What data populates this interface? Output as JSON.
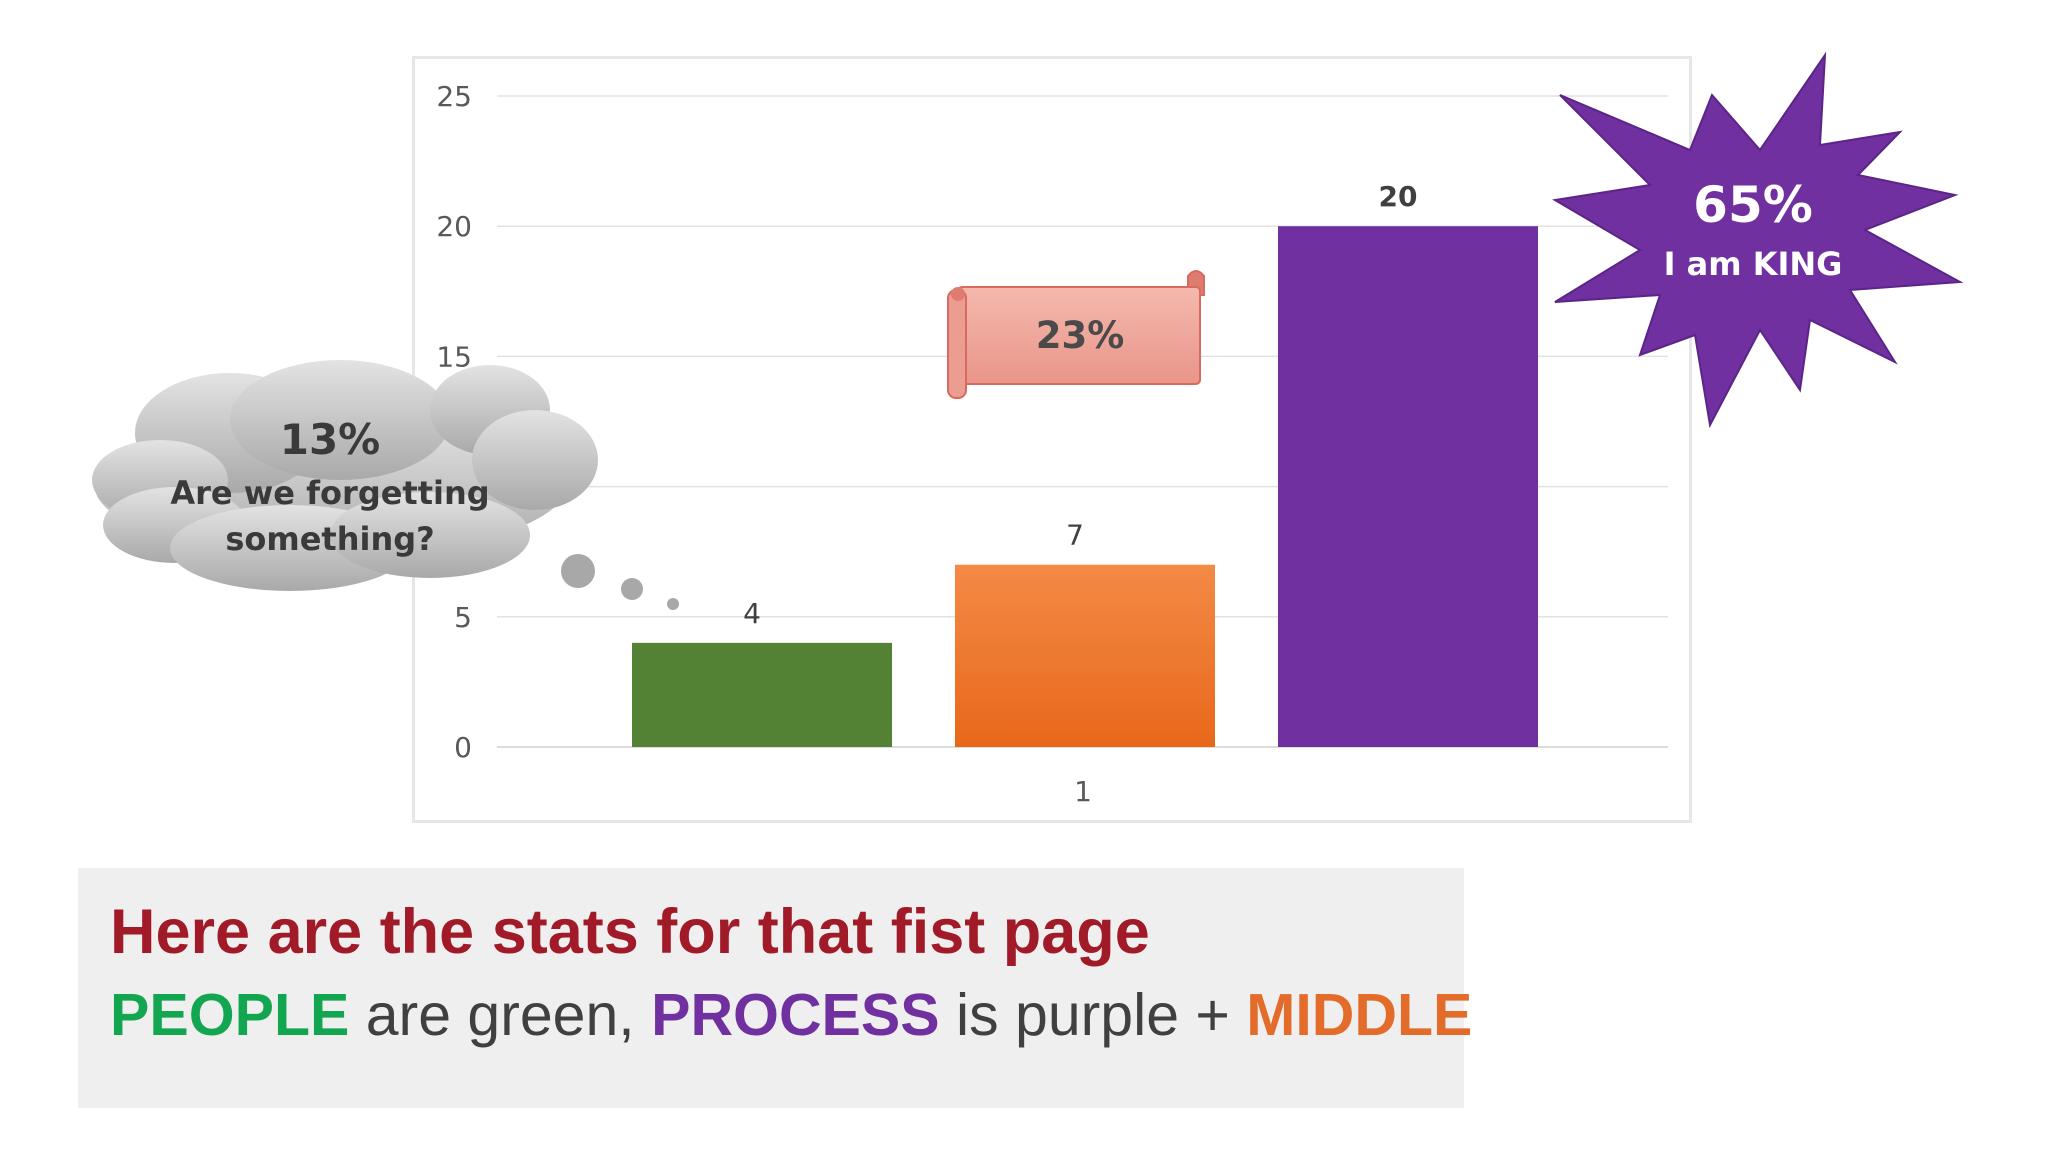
{
  "chart_data": {
    "type": "bar",
    "categories": [
      "1"
    ],
    "series": [
      {
        "values": [
          4
        ],
        "color": "#548235"
      },
      {
        "values": [
          7
        ],
        "color": "#f07a2c"
      },
      {
        "values": [
          20
        ],
        "color": "#7030a0"
      }
    ],
    "data_labels": [
      "4",
      "7",
      "20"
    ],
    "yticks": [
      "0",
      "5",
      "15",
      "20",
      "25"
    ],
    "ylim": [
      0,
      25
    ],
    "grid": true
  },
  "callouts": {
    "cloud": {
      "value": "13%",
      "line1": "Are we forgetting",
      "line2": "something?"
    },
    "scroll": {
      "value": "23%"
    },
    "star": {
      "value": "65%",
      "label": "I am KING"
    }
  },
  "caption": {
    "title": "Here are the stats for that fist page",
    "w1": "PEOPLE",
    "t1": " are green, ",
    "w2": "PROCESS",
    "t2": " is purple + ",
    "w3": "MIDDLE"
  },
  "colors": {
    "people": "#13a651",
    "process": "#7030a0",
    "middle": "#e36c2a",
    "title": "#a11a27"
  }
}
